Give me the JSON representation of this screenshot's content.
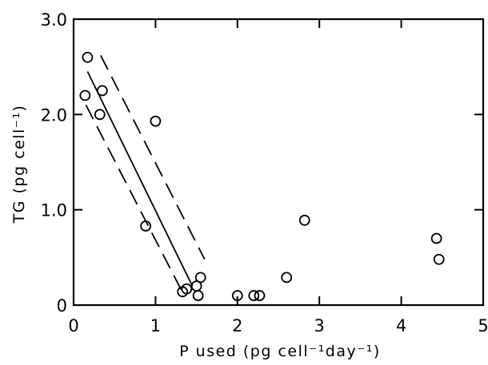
{
  "chart_data": {
    "type": "scatter",
    "title": "",
    "xlabel": "P used (pg cell⁻¹day⁻¹)",
    "ylabel": "TG (pg cell⁻¹)",
    "xlim": [
      0,
      5
    ],
    "ylim": [
      0,
      3
    ],
    "x_ticks": [
      0,
      1,
      2,
      3,
      4,
      5
    ],
    "x_tick_labels": [
      "0",
      "1",
      "2",
      "3",
      "4",
      "5"
    ],
    "y_ticks": [
      0,
      1,
      2,
      3
    ],
    "y_tick_labels": [
      "0",
      "1.0",
      "2.0",
      "3.0"
    ],
    "grid": false,
    "points": {
      "x": [
        0.17,
        0.14,
        0.32,
        0.35,
        1.0,
        0.88,
        1.38,
        1.33,
        1.5,
        1.55,
        1.52,
        2.0,
        2.2,
        2.27,
        2.6,
        2.82,
        4.43,
        4.46
      ],
      "y": [
        2.6,
        2.2,
        2.0,
        2.25,
        1.93,
        0.83,
        0.17,
        0.14,
        0.2,
        0.29,
        0.1,
        0.1,
        0.1,
        0.1,
        0.29,
        0.89,
        0.7,
        0.48
      ]
    },
    "fit_line": {
      "x": [
        0.17,
        1.45
      ],
      "y": [
        2.45,
        0.2
      ]
    },
    "confidence_band": [
      {
        "x": [
          0.33,
          1.6
        ],
        "y": [
          2.62,
          0.48
        ]
      },
      {
        "x": [
          0.15,
          1.32
        ],
        "y": [
          2.1,
          0.15
        ]
      }
    ]
  }
}
